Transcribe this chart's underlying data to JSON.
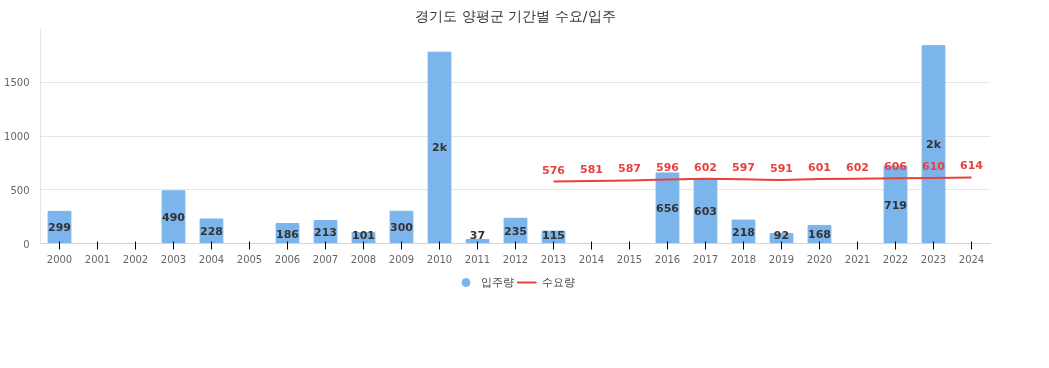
{
  "chart_data": {
    "type": "bar",
    "title": "경기도 양평군 기간별 수요/입주",
    "categories": [
      "2000",
      "2001",
      "2002",
      "2003",
      "2004",
      "2005",
      "2006",
      "2007",
      "2008",
      "2009",
      "2010",
      "2011",
      "2012",
      "2013",
      "2014",
      "2015",
      "2016",
      "2017",
      "2018",
      "2019",
      "2020",
      "2021",
      "2022",
      "2023",
      "2024"
    ],
    "series": [
      {
        "name": "입주량",
        "color": "#7cb5ec",
        "values": [
          299,
          null,
          null,
          490,
          228,
          null,
          186,
          213,
          101,
          300,
          1780,
          37,
          235,
          115,
          null,
          null,
          656,
          603,
          218,
          92,
          168,
          null,
          719,
          1840,
          null
        ],
        "value_labels": [
          "299",
          null,
          null,
          "490",
          "228",
          null,
          "186",
          "213",
          "101",
          "300",
          "2k",
          "37",
          "235",
          "115",
          null,
          null,
          "656",
          "603",
          "218",
          "92",
          "168",
          null,
          "719",
          "2k",
          null
        ]
      },
      {
        "name": "수요량",
        "type": "line",
        "color": "#e8413e",
        "values": [
          null,
          null,
          null,
          null,
          null,
          null,
          null,
          null,
          null,
          null,
          null,
          null,
          null,
          576,
          581,
          587,
          596,
          602,
          597,
          591,
          601,
          602,
          606,
          610,
          614
        ],
        "data_labels": true
      }
    ],
    "ylim": [
      0,
      2000
    ],
    "yticks": [
      0,
      500,
      1000,
      1500
    ],
    "grid": "y",
    "legend": "bottom"
  }
}
